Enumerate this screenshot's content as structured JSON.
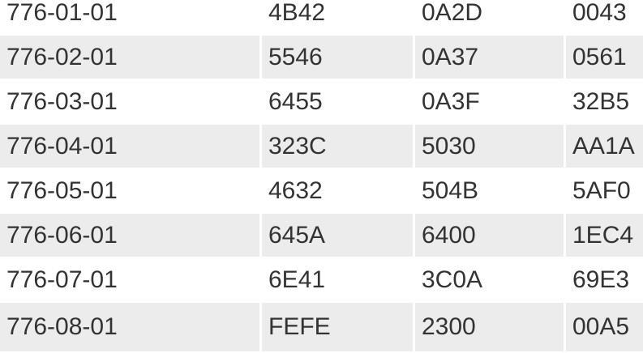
{
  "table": {
    "rows": [
      [
        "776-01-01",
        "4B42",
        "0A2D",
        "0043"
      ],
      [
        "776-02-01",
        "5546",
        "0A37",
        "0561"
      ],
      [
        "776-03-01",
        "6455",
        "0A3F",
        "32B5"
      ],
      [
        "776-04-01",
        "323C",
        "5030",
        "AA1A"
      ],
      [
        "776-05-01",
        "4632",
        "504B",
        "5AF0"
      ],
      [
        "776-06-01",
        "645A",
        "6400",
        "1EC4"
      ],
      [
        "776-07-01",
        "6E41",
        "3C0A",
        "69E3"
      ],
      [
        "776-08-01",
        "FEFE",
        "2300",
        "00A5"
      ]
    ]
  },
  "colors": {
    "row_bg": "#ffffff",
    "row_alt_bg": "#ececec",
    "text": "#333333"
  }
}
